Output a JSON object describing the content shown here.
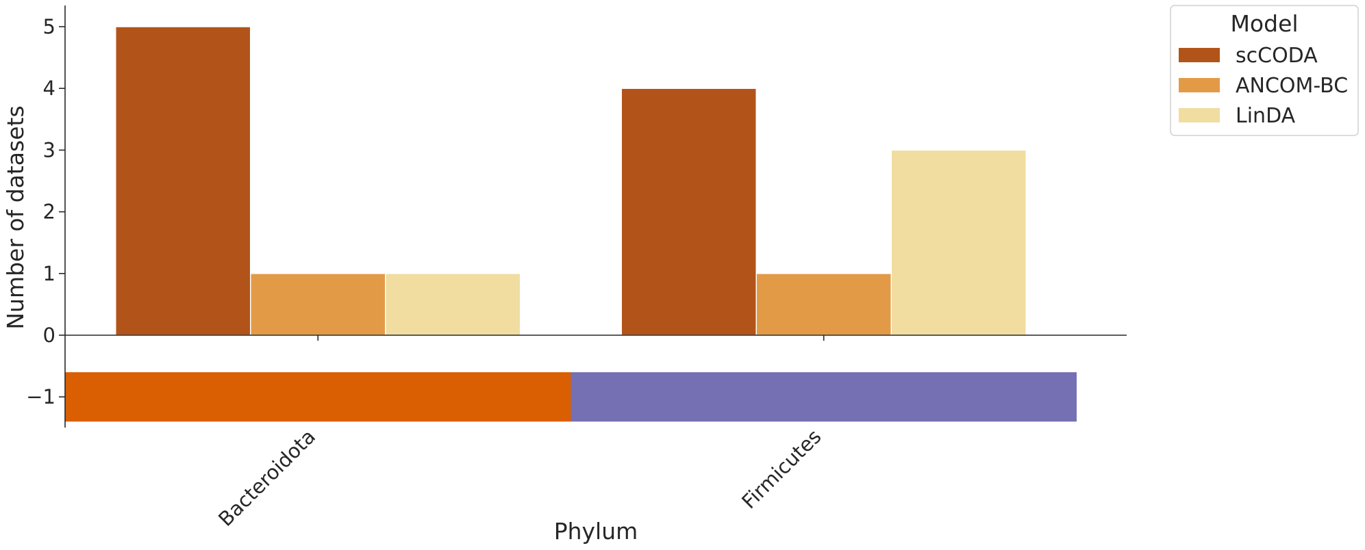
{
  "chart_data": {
    "type": "bar",
    "categories": [
      "Bacteroidota",
      "Firmicutes"
    ],
    "series": [
      {
        "name": "scCODA",
        "color": "#b2541a",
        "values": [
          5,
          4
        ]
      },
      {
        "name": "ANCOM-BC",
        "color": "#e39a46",
        "values": [
          1,
          1
        ]
      },
      {
        "name": "LinDA",
        "color": "#f1dda0",
        "values": [
          1,
          3
        ]
      }
    ],
    "category_band": {
      "y_range": [
        -1.4,
        -0.6
      ],
      "colors": [
        "#d95f02",
        "#7570b3"
      ]
    },
    "xlabel": "Phylum",
    "ylabel": "Number of datasets",
    "ylim": [
      -1.5,
      5.3
    ],
    "yticks": [
      -1,
      0,
      1,
      2,
      3,
      4,
      5
    ],
    "ytick_labels": [
      "−1",
      "0",
      "1",
      "2",
      "3",
      "4",
      "5"
    ],
    "grid": false,
    "legend": {
      "title": "Model",
      "placement": "top-right outside"
    }
  }
}
